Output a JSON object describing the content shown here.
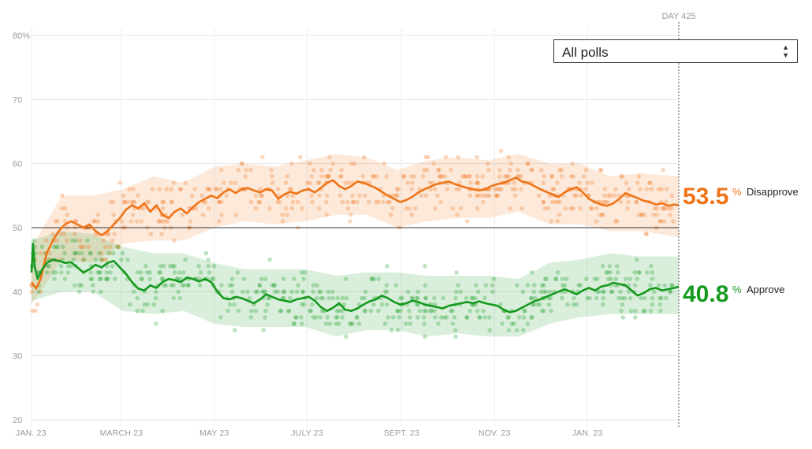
{
  "filter": {
    "selected": "All polls"
  },
  "marker": {
    "label": "DAY 425"
  },
  "summary": {
    "disapprove": {
      "value": "53.5",
      "unit": "%",
      "label": "Disapprove",
      "color": "#ef7418"
    },
    "approve": {
      "value": "40.8",
      "unit": "%",
      "label": "Approve",
      "color": "#159a1f"
    }
  },
  "chart_data": {
    "type": "line",
    "x_domain": [
      0,
      425
    ],
    "ylim": [
      20,
      80
    ],
    "y_ticks": [
      {
        "value": 80,
        "label": "80%"
      },
      {
        "value": 70,
        "label": "70"
      },
      {
        "value": 60,
        "label": "60"
      },
      {
        "value": 50,
        "label": "50"
      },
      {
        "value": 40,
        "label": "40"
      },
      {
        "value": 30,
        "label": "30"
      },
      {
        "value": 20,
        "label": "20"
      }
    ],
    "x_ticks": [
      {
        "day": 0,
        "label": "JAN. 23"
      },
      {
        "day": 59,
        "label": "MARCH 23"
      },
      {
        "day": 120,
        "label": "MAY 23"
      },
      {
        "day": 181,
        "label": "JULY 23"
      },
      {
        "day": 243,
        "label": "SEPT. 23"
      },
      {
        "day": 304,
        "label": "NOV. 23"
      },
      {
        "day": 365,
        "label": "JAN. 23"
      }
    ],
    "reference_line": 50,
    "grid": true,
    "series": [
      {
        "name": "Disapprove",
        "color": "#ef7418",
        "points": [
          [
            0,
            41.5
          ],
          [
            3,
            40.5
          ],
          [
            6,
            42
          ],
          [
            10,
            46
          ],
          [
            14,
            48
          ],
          [
            18,
            49.5
          ],
          [
            22,
            50.5
          ],
          [
            26,
            51
          ],
          [
            30,
            50.5
          ],
          [
            34,
            50
          ],
          [
            38,
            50.5
          ],
          [
            42,
            49.5
          ],
          [
            46,
            48.8
          ],
          [
            50,
            49.5
          ],
          [
            54,
            50.5
          ],
          [
            58,
            51.5
          ],
          [
            62,
            52.8
          ],
          [
            66,
            53.5
          ],
          [
            70,
            53
          ],
          [
            74,
            53.8
          ],
          [
            78,
            52.5
          ],
          [
            82,
            53.5
          ],
          [
            86,
            52
          ],
          [
            90,
            51.5
          ],
          [
            94,
            52.5
          ],
          [
            98,
            53
          ],
          [
            102,
            52.2
          ],
          [
            106,
            53.2
          ],
          [
            110,
            54
          ],
          [
            114,
            54.5
          ],
          [
            118,
            55
          ],
          [
            122,
            54.6
          ],
          [
            126,
            55.5
          ],
          [
            130,
            56
          ],
          [
            134,
            55.4
          ],
          [
            138,
            56
          ],
          [
            142,
            56.2
          ],
          [
            146,
            55.8
          ],
          [
            150,
            55.5
          ],
          [
            154,
            56
          ],
          [
            158,
            55.8
          ],
          [
            162,
            54.5
          ],
          [
            166,
            55.2
          ],
          [
            170,
            55.6
          ],
          [
            174,
            55.3
          ],
          [
            178,
            55.8
          ],
          [
            182,
            56
          ],
          [
            186,
            55.5
          ],
          [
            190,
            56.2
          ],
          [
            194,
            57
          ],
          [
            198,
            57.4
          ],
          [
            202,
            56.5
          ],
          [
            206,
            56
          ],
          [
            210,
            56.5
          ],
          [
            214,
            57.2
          ],
          [
            218,
            57
          ],
          [
            222,
            56.6
          ],
          [
            226,
            56.2
          ],
          [
            230,
            55.6
          ],
          [
            234,
            55
          ],
          [
            238,
            54.5
          ],
          [
            242,
            54
          ],
          [
            246,
            54.3
          ],
          [
            250,
            54.8
          ],
          [
            254,
            55.5
          ],
          [
            258,
            56
          ],
          [
            262,
            56.4
          ],
          [
            266,
            56.8
          ],
          [
            270,
            57
          ],
          [
            274,
            57.2
          ],
          [
            278,
            56.8
          ],
          [
            282,
            56.5
          ],
          [
            286,
            56.2
          ],
          [
            290,
            56
          ],
          [
            294,
            55.8
          ],
          [
            298,
            56
          ],
          [
            302,
            56.5
          ],
          [
            306,
            56.8
          ],
          [
            310,
            57
          ],
          [
            314,
            57.4
          ],
          [
            318,
            57.8
          ],
          [
            322,
            57.2
          ],
          [
            326,
            57
          ],
          [
            330,
            56.5
          ],
          [
            334,
            56
          ],
          [
            338,
            55.6
          ],
          [
            342,
            55.2
          ],
          [
            346,
            54.8
          ],
          [
            350,
            55.5
          ],
          [
            354,
            56
          ],
          [
            358,
            56.3
          ],
          [
            362,
            55.5
          ],
          [
            366,
            54.5
          ],
          [
            370,
            54
          ],
          [
            374,
            53.6
          ],
          [
            378,
            53.4
          ],
          [
            382,
            53.8
          ],
          [
            386,
            54.5
          ],
          [
            390,
            55.4
          ],
          [
            394,
            55
          ],
          [
            398,
            54.6
          ],
          [
            402,
            54.2
          ],
          [
            406,
            54
          ],
          [
            410,
            53.6
          ],
          [
            414,
            53.8
          ],
          [
            418,
            53.4
          ],
          [
            422,
            53.6
          ],
          [
            425,
            53.5
          ]
        ],
        "band": [
          [
            0,
            38,
            47
          ],
          [
            20,
            45,
            55
          ],
          [
            40,
            44.5,
            55
          ],
          [
            60,
            47.5,
            56
          ],
          [
            80,
            48,
            58
          ],
          [
            100,
            48,
            57
          ],
          [
            120,
            50,
            59.5
          ],
          [
            140,
            51,
            60
          ],
          [
            160,
            50.5,
            59.5
          ],
          [
            180,
            51,
            60.5
          ],
          [
            200,
            52,
            61.5
          ],
          [
            220,
            52,
            61
          ],
          [
            240,
            50,
            59
          ],
          [
            260,
            51,
            60.5
          ],
          [
            280,
            51.5,
            61
          ],
          [
            300,
            51.5,
            60.5
          ],
          [
            320,
            52.5,
            61.5
          ],
          [
            340,
            50.5,
            60
          ],
          [
            360,
            50.5,
            60
          ],
          [
            380,
            49.5,
            58
          ],
          [
            400,
            49.5,
            58.5
          ],
          [
            425,
            48.5,
            58
          ]
        ]
      },
      {
        "name": "Approve",
        "color": "#159a1f",
        "points": [
          [
            0,
            43
          ],
          [
            1,
            47.5
          ],
          [
            2,
            44
          ],
          [
            4,
            42
          ],
          [
            7,
            43.5
          ],
          [
            10,
            44.5
          ],
          [
            14,
            45
          ],
          [
            18,
            44.8
          ],
          [
            22,
            44.5
          ],
          [
            26,
            44.6
          ],
          [
            30,
            43.8
          ],
          [
            34,
            43
          ],
          [
            38,
            43.5
          ],
          [
            42,
            44.2
          ],
          [
            46,
            43.8
          ],
          [
            50,
            44.5
          ],
          [
            54,
            44.8
          ],
          [
            58,
            43.8
          ],
          [
            62,
            42.8
          ],
          [
            66,
            41.5
          ],
          [
            70,
            40.5
          ],
          [
            74,
            40.2
          ],
          [
            78,
            41
          ],
          [
            82,
            40.6
          ],
          [
            86,
            41.5
          ],
          [
            90,
            42
          ],
          [
            94,
            41.8
          ],
          [
            98,
            41.5
          ],
          [
            102,
            42.2
          ],
          [
            106,
            42
          ],
          [
            110,
            41.6
          ],
          [
            114,
            42
          ],
          [
            118,
            41.5
          ],
          [
            122,
            40
          ],
          [
            126,
            39
          ],
          [
            130,
            38.8
          ],
          [
            134,
            39.2
          ],
          [
            138,
            39
          ],
          [
            142,
            38.6
          ],
          [
            146,
            38.2
          ],
          [
            150,
            38.8
          ],
          [
            154,
            39.6
          ],
          [
            158,
            39.2
          ],
          [
            162,
            38.8
          ],
          [
            166,
            38.6
          ],
          [
            170,
            38.4
          ],
          [
            174,
            38.8
          ],
          [
            178,
            39
          ],
          [
            182,
            39.2
          ],
          [
            186,
            38.6
          ],
          [
            190,
            37.6
          ],
          [
            194,
            37
          ],
          [
            198,
            37.5
          ],
          [
            202,
            38.2
          ],
          [
            206,
            37.2
          ],
          [
            210,
            37
          ],
          [
            214,
            37.4
          ],
          [
            218,
            38
          ],
          [
            222,
            38.5
          ],
          [
            226,
            38.8
          ],
          [
            230,
            39.4
          ],
          [
            234,
            39
          ],
          [
            238,
            38.4
          ],
          [
            242,
            38
          ],
          [
            246,
            38.2
          ],
          [
            250,
            38.6
          ],
          [
            254,
            38.4
          ],
          [
            258,
            38
          ],
          [
            262,
            37.8
          ],
          [
            266,
            37.6
          ],
          [
            270,
            37.4
          ],
          [
            274,
            37.8
          ],
          [
            278,
            38
          ],
          [
            282,
            38.2
          ],
          [
            286,
            38.4
          ],
          [
            290,
            38.2
          ],
          [
            294,
            38.5
          ],
          [
            298,
            38.2
          ],
          [
            302,
            38
          ],
          [
            306,
            37.8
          ],
          [
            310,
            37.2
          ],
          [
            314,
            36.8
          ],
          [
            318,
            37
          ],
          [
            322,
            37.5
          ],
          [
            326,
            38
          ],
          [
            330,
            38.5
          ],
          [
            334,
            38.8
          ],
          [
            338,
            39.2
          ],
          [
            342,
            39.6
          ],
          [
            346,
            40
          ],
          [
            350,
            40.4
          ],
          [
            354,
            40
          ],
          [
            358,
            39.6
          ],
          [
            362,
            40.2
          ],
          [
            366,
            40.6
          ],
          [
            370,
            40.2
          ],
          [
            374,
            40.8
          ],
          [
            378,
            41
          ],
          [
            382,
            41.4
          ],
          [
            386,
            41.2
          ],
          [
            390,
            41
          ],
          [
            394,
            40.2
          ],
          [
            398,
            39.4
          ],
          [
            402,
            39.8
          ],
          [
            406,
            40.4
          ],
          [
            410,
            40.6
          ],
          [
            414,
            40.2
          ],
          [
            418,
            40.4
          ],
          [
            422,
            40.6
          ],
          [
            425,
            40.8
          ]
        ],
        "band": [
          [
            0,
            38.5,
            48
          ],
          [
            20,
            40,
            49.5
          ],
          [
            40,
            40,
            49
          ],
          [
            60,
            37,
            47
          ],
          [
            80,
            36.5,
            46
          ],
          [
            100,
            37,
            46
          ],
          [
            120,
            35,
            44.5
          ],
          [
            140,
            34.5,
            43.5
          ],
          [
            160,
            34.5,
            43.5
          ],
          [
            180,
            34.5,
            43.5
          ],
          [
            200,
            33,
            42.5
          ],
          [
            220,
            34,
            43
          ],
          [
            240,
            34,
            43
          ],
          [
            260,
            33,
            42.5
          ],
          [
            280,
            33.5,
            42.5
          ],
          [
            300,
            33,
            42.5
          ],
          [
            320,
            33,
            42
          ],
          [
            340,
            35,
            44.5
          ],
          [
            360,
            36,
            45
          ],
          [
            380,
            36.5,
            46
          ],
          [
            400,
            36.5,
            45.5
          ],
          [
            425,
            36.5,
            45.5
          ]
        ]
      }
    ]
  }
}
